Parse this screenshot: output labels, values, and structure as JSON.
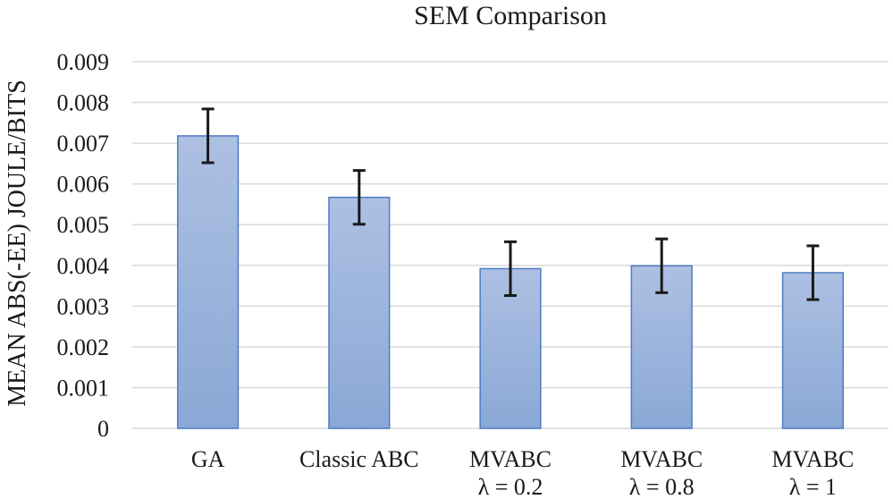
{
  "chart_data": {
    "type": "bar",
    "title": "SEM Comparison",
    "xlabel": "",
    "ylabel": "MEAN ABS(-EE) JOULE/BITS",
    "categories": [
      [
        "GA"
      ],
      [
        "Classic ABC"
      ],
      [
        "MVABC",
        "λ = 0.2"
      ],
      [
        "MVABC",
        "λ = 0.8"
      ],
      [
        "MVABC",
        "λ = 1"
      ]
    ],
    "values": [
      0.00718,
      0.00567,
      0.00392,
      0.00399,
      0.00382
    ],
    "errors": [
      0.00066,
      0.00066,
      0.00066,
      0.00066,
      0.00066
    ],
    "ylim": [
      0,
      0.009
    ],
    "yticks": [
      "0",
      "0.001",
      "0.002",
      "0.003",
      "0.004",
      "0.005",
      "0.006",
      "0.007",
      "0.008",
      "0.009"
    ],
    "grid": true,
    "legend": "none",
    "colors": {
      "bar_top": "#adc0e2",
      "bar_bottom": "#8aa8d6",
      "bar_border": "#4f7cc4",
      "grid": "#d9d9d9",
      "error": "#1a1a1a"
    }
  }
}
